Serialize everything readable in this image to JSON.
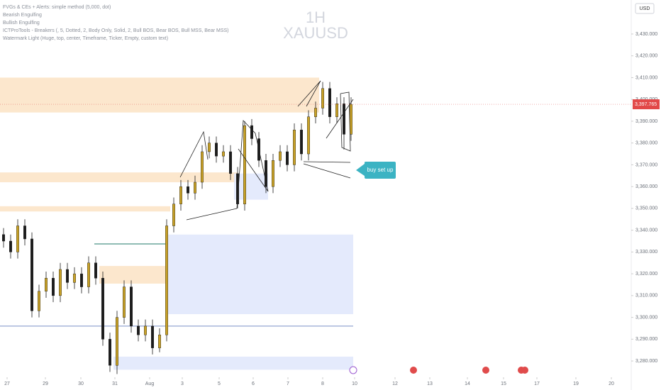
{
  "chart_data": {
    "type": "candlestick",
    "legend_lines": [
      "FVGs & CEs + Alerts: simple method (5,000, dot)",
      "Bearish Engulfing",
      "Bullish Engulfing",
      "ICTProTools - Breakers (, 5, Dotted, 2, Body Only, Solid, 2, Bull BOS, Bear BOS, Bull MSS, Bear MSS)",
      "Watermark Light (Huge, top, center, Timeframe, Ticker, Empty, custom text)"
    ],
    "watermark_timeframe": "1H",
    "watermark_ticker": "XAUUSD",
    "currency": "USD",
    "annotation": "buy set up",
    "last_price": {
      "value": 3397.765,
      "label": "3,397.765"
    },
    "up_color": "#c9a227",
    "down_color": "#1c1c1c",
    "x": [
      1,
      3,
      5,
      7,
      9,
      11,
      13,
      15,
      17,
      19,
      21,
      23,
      25,
      27,
      29,
      31,
      33,
      35,
      37,
      39,
      41,
      43,
      45,
      47,
      49,
      51,
      53,
      55,
      57,
      59,
      61,
      63,
      65,
      67,
      69,
      71,
      73,
      75,
      77,
      79,
      81,
      83,
      85,
      87,
      89,
      91,
      93,
      95,
      97,
      99
    ],
    "open": [
      3338,
      3335,
      3330,
      3342,
      3336,
      3303,
      3312,
      3318,
      3310,
      3322,
      3316,
      3320,
      3314,
      3325,
      3318,
      3290,
      3278,
      3300,
      3314,
      3296,
      3292,
      3296,
      3286,
      3292,
      3342,
      3352,
      3360,
      3357,
      3362,
      3376,
      3380,
      3374,
      3376,
      3366,
      3352,
      3388,
      3382,
      3372,
      3360,
      3372,
      3376,
      3370,
      3386,
      3375,
      3392,
      3396,
      3405,
      3392,
      3398,
      3384
    ],
    "high": [
      3341,
      3338,
      3345,
      3345,
      3339,
      3315,
      3321,
      3321,
      3325,
      3325,
      3323,
      3323,
      3328,
      3328,
      3321,
      3293,
      3303,
      3317,
      3317,
      3299,
      3299,
      3299,
      3295,
      3345,
      3355,
      3363,
      3363,
      3365,
      3379,
      3383,
      3383,
      3379,
      3379,
      3369,
      3390,
      3391,
      3385,
      3375,
      3375,
      3379,
      3379,
      3389,
      3389,
      3395,
      3399,
      3408,
      3408,
      3401,
      3401,
      3401
    ],
    "low": [
      3332,
      3327,
      3327,
      3333,
      3300,
      3300,
      3309,
      3307,
      3307,
      3313,
      3313,
      3311,
      3311,
      3315,
      3287,
      3275,
      3274,
      3297,
      3293,
      3289,
      3289,
      3283,
      3284,
      3289,
      3339,
      3349,
      3354,
      3354,
      3359,
      3373,
      3371,
      3371,
      3363,
      3350,
      3349,
      3379,
      3369,
      3357,
      3357,
      3369,
      3367,
      3367,
      3372,
      3372,
      3389,
      3393,
      3389,
      3389,
      3377,
      3381
    ],
    "close": [
      3335,
      3330,
      3342,
      3336,
      3303,
      3312,
      3318,
      3310,
      3322,
      3316,
      3320,
      3314,
      3325,
      3318,
      3290,
      3278,
      3300,
      3314,
      3296,
      3292,
      3296,
      3286,
      3292,
      3342,
      3352,
      3360,
      3357,
      3362,
      3376,
      3380,
      3374,
      3376,
      3366,
      3352,
      3388,
      3382,
      3372,
      3360,
      3372,
      3376,
      3370,
      3386,
      3375,
      3392,
      3396,
      3405,
      3392,
      3398,
      3384,
      3397.765
    ],
    "zones": [
      {
        "range": [
          3394,
          3410
        ],
        "x": [
          0,
          90
        ],
        "color": "#fbe3c4"
      },
      {
        "range": [
          3362,
          3366.5
        ],
        "x": [
          0,
          67
        ],
        "color": "#fbe3c4"
      },
      {
        "range": [
          3348.6,
          3351
        ],
        "x": [
          0,
          48
        ],
        "color": "#fbe3c4"
      },
      {
        "range": [
          3315.5,
          3323.6
        ],
        "x": [
          28,
          47
        ],
        "color": "#fbe3c4"
      },
      {
        "range": [
          3354,
          3366
        ],
        "x": [
          66,
          75.6
        ],
        "color": "#dfe6fb"
      },
      {
        "range": [
          3301.5,
          3338
        ],
        "x": [
          47.4,
          99.6
        ],
        "color": "#dfe6fb"
      },
      {
        "range": [
          3276,
          3282
        ],
        "x": [
          32,
          99.6
        ],
        "color": "#dfe6fb"
      }
    ],
    "levels": [
      {
        "value": 3296,
        "x": [
          0,
          99.6
        ],
        "color": "#7a8fc8"
      },
      {
        "value": 3333.7,
        "x": [
          26.6,
          47.4
        ],
        "color": "#1f7a6a"
      }
    ],
    "xlim": [
      0,
      178
    ],
    "ylim": [
      3273.2,
      3445.6
    ],
    "xticks": [
      {
        "value": 2,
        "label": "27"
      },
      {
        "value": 12.8,
        "label": "29"
      },
      {
        "value": 22.8,
        "label": "30"
      },
      {
        "value": 32.4,
        "label": "31"
      },
      {
        "value": 42.2,
        "label": "Aug"
      },
      {
        "value": 51.4,
        "label": "3"
      },
      {
        "value": 61.8,
        "label": "5"
      },
      {
        "value": 71.4,
        "label": "6"
      },
      {
        "value": 81.2,
        "label": "7"
      },
      {
        "value": 91,
        "label": "8"
      },
      {
        "value": 100,
        "label": "10"
      },
      {
        "value": 111.4,
        "label": "12"
      },
      {
        "value": 121.2,
        "label": "13"
      },
      {
        "value": 131.8,
        "label": "14"
      },
      {
        "value": 142,
        "label": "15"
      },
      {
        "value": 151.4,
        "label": "17"
      },
      {
        "value": 162.4,
        "label": "19"
      },
      {
        "value": 172.4,
        "label": "20"
      }
    ],
    "yticks": [
      {
        "value": 3280,
        "label": "3,280.000"
      },
      {
        "value": 3290,
        "label": "3,290.000"
      },
      {
        "value": 3300,
        "label": "3,300.000"
      },
      {
        "value": 3310,
        "label": "3,310.000"
      },
      {
        "value": 3320,
        "label": "3,320.000"
      },
      {
        "value": 3330,
        "label": "3,330.000"
      },
      {
        "value": 3340,
        "label": "3,340.000"
      },
      {
        "value": 3350,
        "label": "3,350.000"
      },
      {
        "value": 3360,
        "label": "3,360.000"
      },
      {
        "value": 3370,
        "label": "3,370.000"
      },
      {
        "value": 3380,
        "label": "3,380.000"
      },
      {
        "value": 3390,
        "label": "3,390.000"
      },
      {
        "value": 3400,
        "label": "3,400.000"
      },
      {
        "value": 3410,
        "label": "3,410.000"
      },
      {
        "value": 3420,
        "label": "3,420.000"
      },
      {
        "value": 3430,
        "label": "3,430.000"
      }
    ]
  }
}
